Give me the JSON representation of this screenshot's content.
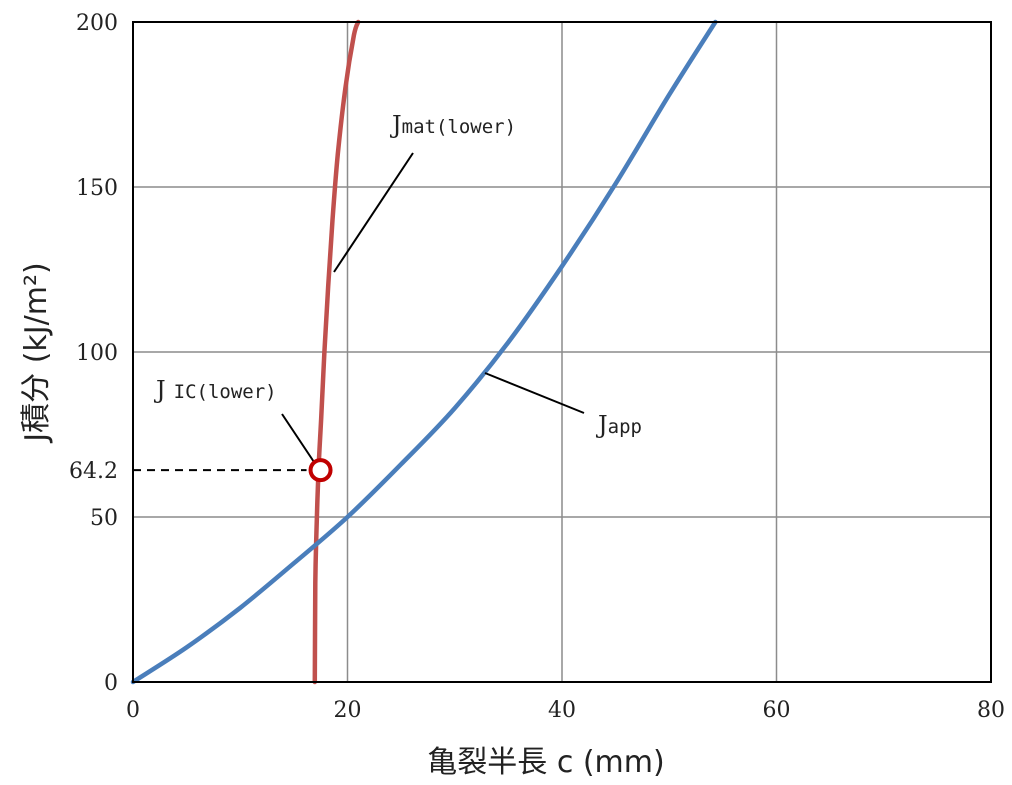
{
  "chart_data": {
    "type": "line",
    "xlabel": "亀裂半長 c (mm)",
    "ylabel": "J積分 (kJ/m²)",
    "xlim": [
      0,
      80
    ],
    "ylim": [
      0,
      200
    ],
    "x_ticks": [
      0,
      20,
      40,
      60,
      80
    ],
    "y_ticks": [
      0,
      50,
      100,
      150,
      200
    ],
    "grid": true,
    "series": [
      {
        "name": "Jmat(lower)",
        "color": "#c0504d",
        "x": [
          16.95,
          17.0,
          17.1,
          17.3,
          17.55,
          17.85,
          18.2,
          18.6,
          19.1,
          19.8,
          20.6,
          21.0
        ],
        "y": [
          0,
          30,
          45,
          64.2,
          80,
          100,
          120,
          140,
          160,
          180,
          196,
          200
        ]
      },
      {
        "name": "Japp",
        "color": "#4a7ebb",
        "x": [
          0,
          5,
          10,
          15,
          20,
          25,
          30,
          35,
          40,
          45,
          50,
          54.3
        ],
        "y": [
          0,
          10.5,
          22.5,
          36,
          50,
          66,
          83,
          103,
          126,
          151,
          178,
          200
        ]
      }
    ],
    "points": [
      {
        "name": "JIC(lower)",
        "x": 17.3,
        "y": 64.2,
        "value_label": "64.2"
      }
    ],
    "annotations": {
      "jmat": {
        "main": "J",
        "sub": "mat(lower)"
      },
      "jic": {
        "main": "J",
        "sub": "IC(lower)"
      },
      "japp": {
        "main": "J",
        "sub": "app"
      }
    }
  }
}
